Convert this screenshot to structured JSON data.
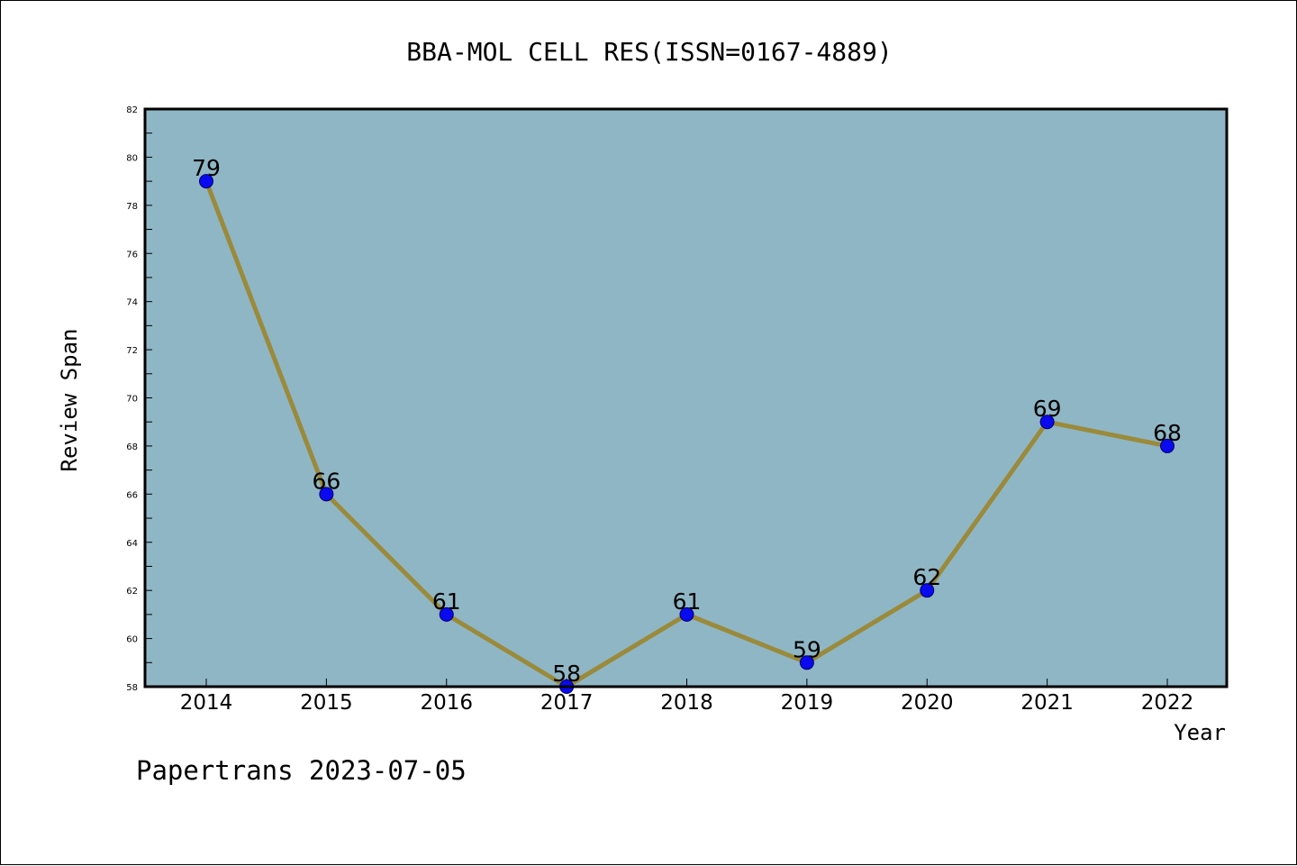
{
  "colors": {
    "plot_background": "#8fb6c5",
    "line": "#9a8a3a",
    "marker_fill": "#0a0af0",
    "marker_edge": "#000066",
    "axis": "#000000"
  },
  "chart_data": {
    "type": "line",
    "title": "BBA-MOL CELL RES(ISSN=0167-4889)",
    "xlabel": "Year",
    "ylabel": "Review Span",
    "categories": [
      "2014",
      "2015",
      "2016",
      "2017",
      "2018",
      "2019",
      "2020",
      "2021",
      "2022"
    ],
    "series": [
      {
        "values": [
          79,
          66,
          61,
          58,
          61,
          59,
          62,
          69,
          68
        ]
      }
    ],
    "ylim": [
      58,
      82
    ],
    "yticks": [
      58,
      60,
      62,
      64,
      66,
      68,
      70,
      72,
      74,
      76,
      78,
      80,
      82
    ],
    "grid": false,
    "data_labels": true
  },
  "footer": {
    "watermark": "Papertrans 2023-07-05"
  }
}
